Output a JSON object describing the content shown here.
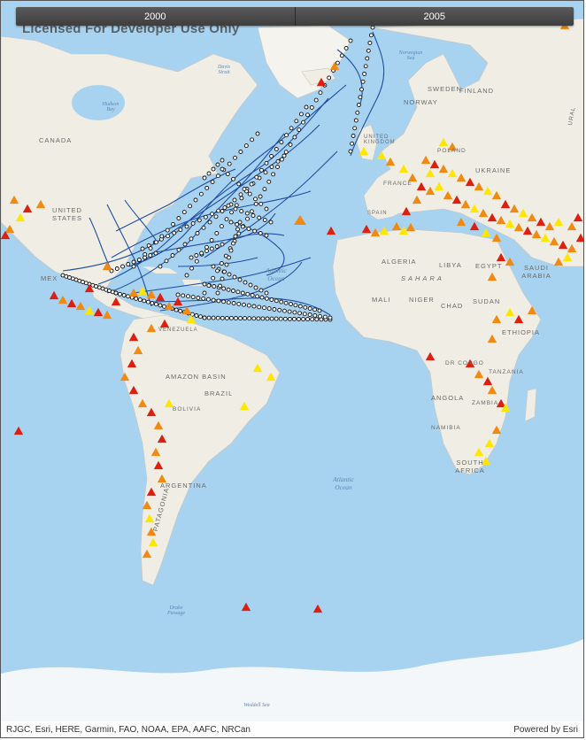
{
  "time_slider": {
    "tabs": [
      "2000",
      "2005"
    ]
  },
  "watermark": "Licensed For Developer Use Only",
  "attribution": {
    "left": "RJGC, Esri, HERE, Garmin, FAO, NOAA, EPA, AAFC, NRCan",
    "right": "Powered by Esri"
  },
  "labels": {
    "canada": "CANADA",
    "united_states": "UNITED STATES",
    "mexico": "MEX",
    "venezuela": "VENEZUELA",
    "amazon": "AMAZON BASIN",
    "brazil": "BRAZIL",
    "bolivia": "BOLIVIA",
    "argentina": "ARGENTINA",
    "patagonia": "PATAGONIA",
    "sweden": "SWEDEN",
    "finland": "FINLAND",
    "norway": "NORWAY",
    "uk": "UNITED KINGDOM",
    "poland": "POLAND",
    "ukraine": "UKRAINE",
    "france": "FRANCE",
    "spain": "SPAIN",
    "algeria": "ALGERIA",
    "libya": "LIBYA",
    "egypt": "EGYPT",
    "saudi": "SAUDI ARABIA",
    "sahara": "SAHARA",
    "mali": "MALI",
    "niger": "NIGER",
    "chad": "CHAD",
    "sudan": "SUDAN",
    "ethiopia": "ETHIOPIA",
    "drcongo": "DR CONGO",
    "tanzania": "TANZANIA",
    "angola": "ANGOLA",
    "zambia": "ZAMBIA",
    "namibia": "NAMIBIA",
    "south_africa": "SOUTH AFRICA",
    "ural": "URAL",
    "hudson_bay": "Hudson Bay",
    "davis_strait": "Davis Strait",
    "norwegian_sea": "Norwegian Sea",
    "atlantic_north": "Atlantic Ocean",
    "atlantic_south": "Atlantic Ocean",
    "drake": "Drake Passage",
    "weddell": "Weddell Sea"
  },
  "colors": {
    "ocean": "#a8d3f0",
    "land": "#f3f1ea",
    "track": "#1f4ea3",
    "tri_red": "#dd1f10",
    "tri_orange": "#f08a12",
    "tri_yellow": "#ffe600"
  }
}
